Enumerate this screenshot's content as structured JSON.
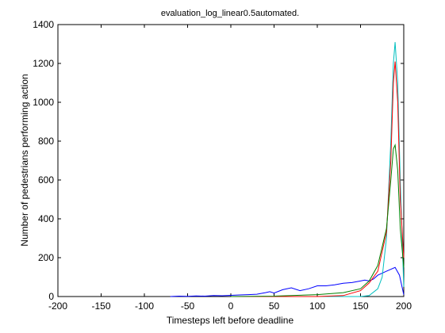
{
  "chart_data": {
    "type": "line",
    "title": "evaluation_log_linear0.5automated.",
    "xlabel": "Timesteps left before deadline",
    "ylabel": "Number of pedestrians performing action",
    "xlim": [
      -200,
      200
    ],
    "ylim": [
      0,
      1400
    ],
    "xticks": [
      -200,
      -150,
      -100,
      -50,
      0,
      50,
      100,
      150,
      200
    ],
    "yticks": [
      0,
      200,
      400,
      600,
      800,
      1000,
      1200,
      1400
    ],
    "grid": false,
    "legend": "none",
    "series": [
      {
        "color": "#0000ff",
        "x": [
          -70,
          -60,
          -50,
          -40,
          -30,
          -20,
          -10,
          0,
          10,
          20,
          30,
          40,
          45,
          50,
          60,
          70,
          80,
          90,
          100,
          110,
          120,
          130,
          140,
          150,
          155,
          160,
          165,
          170,
          180,
          190,
          195,
          200
        ],
        "y": [
          0,
          2,
          1,
          3,
          2,
          5,
          4,
          6,
          8,
          10,
          12,
          20,
          25,
          18,
          35,
          45,
          30,
          40,
          55,
          55,
          60,
          68,
          72,
          80,
          85,
          80,
          90,
          110,
          130,
          150,
          110,
          10
        ]
      },
      {
        "color": "#00bfbf",
        "x": [
          0,
          100,
          150,
          160,
          170,
          175,
          180,
          185,
          188,
          190,
          193,
          196,
          200
        ],
        "y": [
          0,
          0,
          0,
          5,
          40,
          100,
          300,
          800,
          1200,
          1310,
          1100,
          600,
          50
        ]
      },
      {
        "color": "#ff0000",
        "x": [
          0,
          100,
          130,
          150,
          160,
          170,
          180,
          185,
          188,
          190,
          193,
          196,
          200
        ],
        "y": [
          0,
          0,
          5,
          30,
          70,
          130,
          330,
          700,
          1100,
          1210,
          1000,
          500,
          200
        ]
      },
      {
        "color": "#008000",
        "x": [
          0,
          50,
          100,
          130,
          150,
          160,
          170,
          180,
          185,
          188,
          190,
          193,
          196,
          200
        ],
        "y": [
          0,
          2,
          10,
          20,
          40,
          80,
          160,
          350,
          600,
          760,
          780,
          650,
          350,
          150
        ]
      }
    ]
  }
}
